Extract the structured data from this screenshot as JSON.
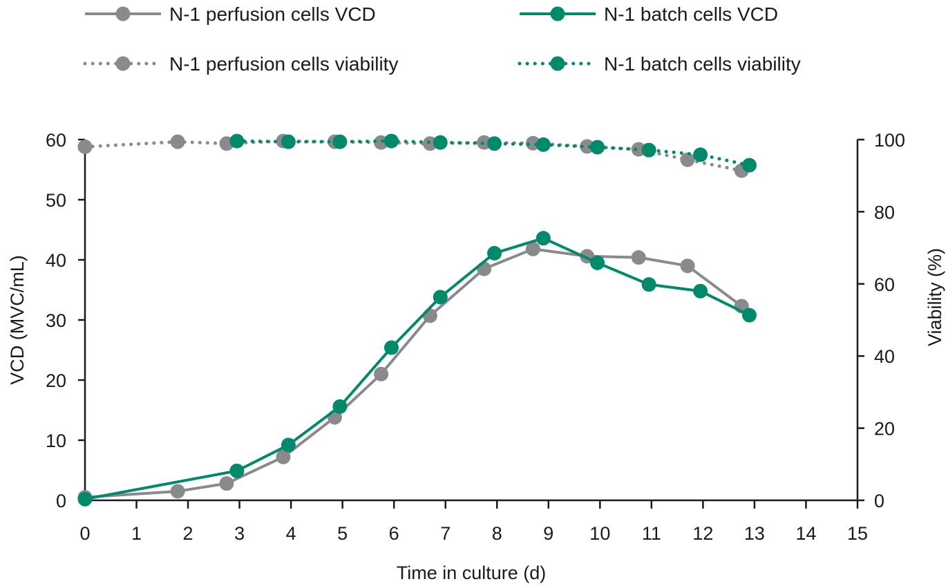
{
  "chart_data": {
    "type": "line",
    "title": "",
    "xlabel": "Time in culture (d)",
    "ylabel": "VCD (MVC/mL)",
    "y2label": "Viability (%)",
    "xlim": [
      0,
      15
    ],
    "ylim": [
      0,
      60
    ],
    "y2lim": [
      0,
      100
    ],
    "xticks": [
      0,
      1,
      2,
      3,
      4,
      5,
      6,
      7,
      8,
      9,
      10,
      11,
      12,
      13,
      14,
      15
    ],
    "yticks": [
      0,
      10,
      20,
      30,
      40,
      50,
      60
    ],
    "y2ticks": [
      0,
      20,
      40,
      60,
      80,
      100
    ],
    "grid": false,
    "legend_position": "top",
    "colors": {
      "perfusion": "#8a8a8c",
      "batch": "#008a6b"
    },
    "series": [
      {
        "name": "N-1 perfusion cells VCD",
        "axis": "left",
        "style": "solid",
        "color_key": "perfusion",
        "x": [
          0,
          1.8,
          2.75,
          3.85,
          4.85,
          5.75,
          6.7,
          7.75,
          8.7,
          9.75,
          10.75,
          11.7,
          12.75
        ],
        "values": [
          0.5,
          1.5,
          2.8,
          7.2,
          13.8,
          21.0,
          30.7,
          38.5,
          41.8,
          40.6,
          40.4,
          39.0,
          32.3
        ]
      },
      {
        "name": "N-1 batch cells VCD",
        "axis": "left",
        "style": "solid",
        "color_key": "batch",
        "x": [
          0,
          2.95,
          3.95,
          4.95,
          5.95,
          6.9,
          7.95,
          8.9,
          9.95,
          10.95,
          11.95,
          12.9
        ],
        "values": [
          0.2,
          4.9,
          9.2,
          15.6,
          25.4,
          33.8,
          41.1,
          43.6,
          39.5,
          35.9,
          34.8,
          30.8
        ]
      },
      {
        "name": "N-1 perfusion cells viability",
        "axis": "right",
        "style": "dotted",
        "color_key": "perfusion",
        "x": [
          0,
          1.8,
          2.75,
          3.85,
          4.85,
          5.75,
          6.7,
          7.75,
          8.7,
          9.75,
          10.75,
          11.7,
          12.75
        ],
        "values": [
          98.0,
          99.4,
          98.9,
          99.6,
          99.4,
          99.2,
          98.9,
          99.2,
          99.0,
          98.1,
          97.3,
          94.4,
          91.4
        ]
      },
      {
        "name": "N-1 batch cells viability",
        "axis": "right",
        "style": "dotted",
        "color_key": "batch",
        "x": [
          2.95,
          3.95,
          4.95,
          5.95,
          6.9,
          7.95,
          8.9,
          9.95,
          10.95,
          11.95,
          12.9
        ],
        "values": [
          99.6,
          99.4,
          99.4,
          99.6,
          99.2,
          98.9,
          98.6,
          97.9,
          97.1,
          95.8,
          92.9
        ]
      }
    ],
    "legend": [
      {
        "label": "N-1 perfusion cells VCD",
        "style": "solid",
        "color_key": "perfusion"
      },
      {
        "label": "N-1 batch cells VCD",
        "style": "solid",
        "color_key": "batch"
      },
      {
        "label": "N-1 perfusion cells viability",
        "style": "dotted",
        "color_key": "perfusion"
      },
      {
        "label": "N-1 batch cells viability",
        "style": "dotted",
        "color_key": "batch"
      }
    ]
  }
}
